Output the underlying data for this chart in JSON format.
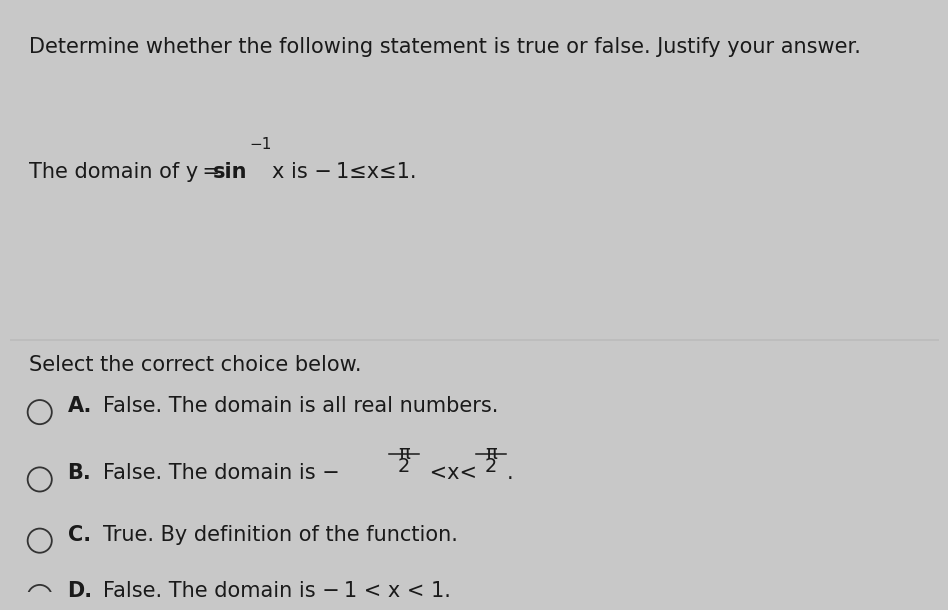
{
  "bg_top": "#f0f0f0",
  "bg_bottom": "#e8e8e8",
  "divider_color": "#bbbbbb",
  "text_color": "#1a1a1a",
  "font_size": 15,
  "font_size_small": 11,
  "circle_color": "#333333",
  "line1": "Determine whether the following statement is true or false. Justify your answer.",
  "line2_pre": "The domain of y = ",
  "line2_sin": "sin",
  "line2_sup": "−1",
  "line2_post": "x is − 1≤x≤1.",
  "prompt": "Select the correct choice below.",
  "opt_A_label": "A.",
  "opt_A_text": "False. The domain is all real numbers.",
  "opt_B_label": "B.",
  "opt_B_pre": "False. The domain is −",
  "opt_B_mid": " <x<",
  "opt_B_post": ".",
  "opt_C_label": "C.",
  "opt_C_text": "True. By definition of the function.",
  "opt_D_label": "D.",
  "opt_D_text": "False. The domain is − 1 < x < 1."
}
